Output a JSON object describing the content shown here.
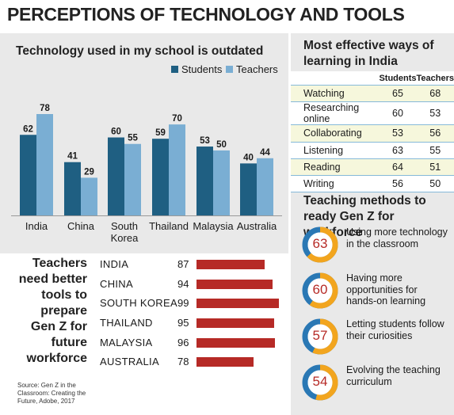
{
  "title": "PERCEPTIONS OF TECHNOLOGY AND TOOLS",
  "colors": {
    "students": "#1f5f82",
    "teachers": "#7aaed3",
    "accent_red": "#b62a26",
    "ring_orange": "#f2a51e",
    "ring_blue": "#2a78b4"
  },
  "chart_data": [
    {
      "type": "bar",
      "title": "Technology used in my school is outdated",
      "categories": [
        "India",
        "China",
        "South Korea",
        "Thailand",
        "Malaysia",
        "Australia"
      ],
      "series": [
        {
          "name": "Students",
          "values": [
            62,
            41,
            60,
            59,
            53,
            40
          ]
        },
        {
          "name": "Teachers",
          "values": [
            78,
            29,
            55,
            70,
            50,
            44
          ]
        }
      ],
      "ylim": [
        0,
        90
      ],
      "grid": false,
      "legend": "top-right"
    },
    {
      "type": "bar",
      "title": "Teachers need better tools to prepare Gen Z for future workforce",
      "categories": [
        "INDIA",
        "CHINA",
        "SOUTH KOREA",
        "THAILAND",
        "MALAYSIA",
        "AUSTRALIA"
      ],
      "values": [
        87,
        94,
        99,
        95,
        96,
        78
      ],
      "ylim": [
        0,
        100
      ]
    },
    {
      "type": "table",
      "title": "Most effective ways of learning in India",
      "columns": [
        "",
        "Students",
        "Teachers"
      ],
      "rows": [
        {
          "method": "Watching",
          "students": 65,
          "teachers": 68
        },
        {
          "method": "Researching online",
          "students": 60,
          "teachers": 53
        },
        {
          "method": "Collaborating",
          "students": 53,
          "teachers": 56
        },
        {
          "method": "Listening",
          "students": 63,
          "teachers": 55
        },
        {
          "method": "Reading",
          "students": 64,
          "teachers": 51
        },
        {
          "method": "Writing",
          "students": 56,
          "teachers": 50
        }
      ]
    },
    {
      "type": "pie",
      "title": "Teaching methods to ready Gen Z for workforce",
      "items": [
        {
          "value": 63,
          "label": "Using more technology in the classroom"
        },
        {
          "value": 60,
          "label": "Having more opportunities for hands-on learning"
        },
        {
          "value": 57,
          "label": "Letting students follow their curiosities"
        },
        {
          "value": 54,
          "label": "Evolving the teaching curriculum"
        }
      ]
    }
  ],
  "tools_heading": "Teachers need better tools to prepare Gen Z for future workforce",
  "source": "Source: Gen Z in the Classroom: Creating the Future, Adobe, 2017"
}
